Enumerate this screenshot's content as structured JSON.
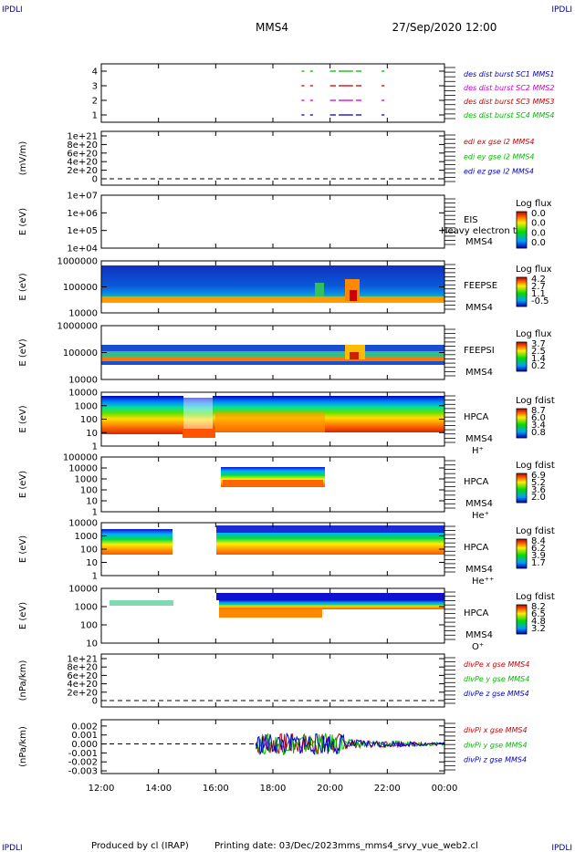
{
  "corner_label": "IPDLI",
  "title": {
    "spacecraft": "MMS4",
    "datetime": "27/Sep/2020 12:00"
  },
  "footer": {
    "producer": "Produced by cl (IRAP)",
    "date": "Printing date: 03/Dec/2023",
    "script": "mms_mms4_srvy_vue_web2.cl"
  },
  "colors": {
    "blue": "#0000cc",
    "magenta": "#cc00cc",
    "red": "#cc0000",
    "green": "#00bb00",
    "frame": "#000000"
  },
  "chart_data": [
    {
      "type": "line",
      "id": "burst",
      "yticks": [
        "1",
        "2",
        "3",
        "4"
      ],
      "ylim": [
        0.5,
        4.5
      ],
      "legend": [
        {
          "text": "des dist burst SC1 MMS1",
          "color": "#0000cc"
        },
        {
          "text": "des dist burst SC2 MMS2",
          "color": "#cc00cc"
        },
        {
          "text": "des dist burst SC3 MMS3",
          "color": "#cc0000"
        },
        {
          "text": "des dist burst SC4 MMS4",
          "color": "#00bb00"
        }
      ],
      "segments": [
        {
          "level": 4,
          "color": "#00bb00",
          "x": [
            [
              19.0,
              19.1
            ],
            [
              19.3,
              19.4
            ],
            [
              20.0,
              20.2
            ],
            [
              20.3,
              20.8
            ],
            [
              20.9,
              21.1
            ],
            [
              21.8,
              21.9
            ]
          ]
        },
        {
          "level": 3,
          "color": "#cc0000",
          "x": [
            [
              19.0,
              19.1
            ],
            [
              19.3,
              19.4
            ],
            [
              20.0,
              20.2
            ],
            [
              20.3,
              20.8
            ],
            [
              20.9,
              21.1
            ],
            [
              21.8,
              21.9
            ]
          ]
        },
        {
          "level": 2,
          "color": "#cc00cc",
          "x": [
            [
              19.0,
              19.1
            ],
            [
              19.3,
              19.4
            ],
            [
              20.0,
              20.2
            ],
            [
              20.3,
              20.8
            ],
            [
              20.9,
              21.1
            ],
            [
              21.8,
              21.9
            ]
          ]
        },
        {
          "level": 1,
          "color": "#0000cc",
          "x": [
            [
              19.0,
              19.1
            ],
            [
              19.3,
              19.4
            ],
            [
              20.0,
              20.2
            ],
            [
              20.3,
              20.8
            ],
            [
              20.9,
              21.1
            ],
            [
              21.8,
              21.9
            ]
          ]
        }
      ]
    },
    {
      "type": "line",
      "id": "edi",
      "ylabel": "(mV/m)",
      "yticks": [
        "1e+21",
        "8e+20",
        "6e+20",
        "4e+20",
        "2e+20",
        "0"
      ],
      "legend": [
        {
          "text": "edi ex gse l2 MMS4",
          "color": "#cc0000"
        },
        {
          "text": "edi ey gse l2 MMS4",
          "color": "#00bb00"
        },
        {
          "text": "edi ez gse l2 MMS4",
          "color": "#0000cc"
        }
      ]
    },
    {
      "type": "heatmap",
      "id": "eis",
      "ylabel": "E (eV)",
      "yticks": [
        "1e+07",
        "1e+06",
        "1e+05",
        "1e+04"
      ],
      "labels": [
        "EIS",
        "MMS4"
      ],
      "overlay": "Heavy electron to",
      "colorbar": {
        "title": "Log flux",
        "ticks": [
          "0.0",
          "0.0",
          "0.0",
          "0.0"
        ]
      }
    },
    {
      "type": "heatmap",
      "id": "feepse",
      "ylabel": "E (eV)",
      "yticks": [
        "1000000",
        "100000",
        "10000"
      ],
      "labels": [
        "FEEPSE",
        "MMS4"
      ],
      "colorbar": {
        "title": "Log flux",
        "ticks": [
          "4.2",
          "2.7",
          "1.1",
          "-0.5"
        ]
      }
    },
    {
      "type": "heatmap",
      "id": "feepsi",
      "ylabel": "E (eV)",
      "yticks": [
        "1000000",
        "100000",
        "10000"
      ],
      "labels": [
        "FEEPSI",
        "MMS4"
      ],
      "colorbar": {
        "title": "Log flux",
        "ticks": [
          "3.7",
          "2.5",
          "1.4",
          "0.2"
        ]
      }
    },
    {
      "type": "heatmap",
      "id": "hpca_h",
      "ylabel": "E (eV)",
      "yticks": [
        "10000",
        "1000",
        "100",
        "10",
        "1"
      ],
      "labels": [
        "HPCA",
        "MMS4",
        "H⁺"
      ],
      "colorbar": {
        "title": "Log fdist",
        "ticks": [
          "8.7",
          "6.0",
          "3.4",
          "0.8"
        ]
      }
    },
    {
      "type": "heatmap",
      "id": "hpca_he1",
      "ylabel": "E (eV)",
      "yticks": [
        "100000",
        "10000",
        "1000",
        "100",
        "10",
        "1"
      ],
      "labels": [
        "HPCA",
        "MMS4",
        "He⁺"
      ],
      "colorbar": {
        "title": "Log fdist",
        "ticks": [
          "6.9",
          "5.2",
          "3.6",
          "2.0"
        ]
      }
    },
    {
      "type": "heatmap",
      "id": "hpca_he2",
      "ylabel": "E (eV)",
      "yticks": [
        "10000",
        "1000",
        "100",
        "10",
        "1"
      ],
      "labels": [
        "HPCA",
        "MMS4",
        "He⁺⁺"
      ],
      "colorbar": {
        "title": "Log fdist",
        "ticks": [
          "8.4",
          "6.2",
          "3.9",
          "1.7"
        ]
      }
    },
    {
      "type": "heatmap",
      "id": "hpca_o",
      "ylabel": "E (eV)",
      "yticks": [
        "10000",
        "1000",
        "100",
        "10"
      ],
      "labels": [
        "HPCA",
        "MMS4",
        "O⁺"
      ],
      "colorbar": {
        "title": "Log fdist",
        "ticks": [
          "8.2",
          "6.5",
          "4.8",
          "3.2"
        ]
      }
    },
    {
      "type": "line",
      "id": "divpe",
      "ylabel": "(nPa/km)",
      "yticks": [
        "1e+21",
        "8e+20",
        "6e+20",
        "4e+20",
        "2e+20",
        "0"
      ],
      "legend": [
        {
          "text": "divPe x gse MMS4",
          "color": "#cc0000"
        },
        {
          "text": "divPe y gse MMS4",
          "color": "#00bb00"
        },
        {
          "text": "divPe z gse MMS4",
          "color": "#0000cc"
        }
      ]
    },
    {
      "type": "line",
      "id": "divpi",
      "ylabel": "(nPa/km)",
      "yticks": [
        "0.002",
        "0.001",
        "0.000",
        "-0.001",
        "-0.002",
        "-0.003"
      ],
      "ylim": [
        -0.0033,
        0.0027
      ],
      "legend": [
        {
          "text": "divPi x gse MMS4",
          "color": "#cc0000"
        },
        {
          "text": "divPi y gse MMS4",
          "color": "#00bb00"
        },
        {
          "text": "divPi z gse MMS4",
          "color": "#0000cc"
        }
      ],
      "active_range": [
        17.4,
        24.0
      ]
    }
  ],
  "xaxis": {
    "ticks": [
      "12:00",
      "14:00",
      "16:00",
      "18:00",
      "20:00",
      "22:00",
      "00:00"
    ],
    "range_hours": [
      12,
      24
    ]
  }
}
